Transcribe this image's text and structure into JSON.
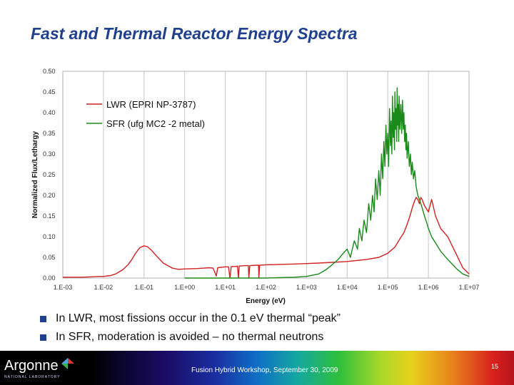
{
  "title": "Fast and Thermal Reactor Energy Spectra",
  "bullets": [
    "In LWR, most fissions occur in the 0.1 eV thermal “peak”",
    "In SFR, moderation is avoided – no thermal neutrons"
  ],
  "footer": {
    "logo_text": "Argonne",
    "logo_sub": "NATIONAL LABORATORY",
    "event_text": "Fusion Hybrid Workshop, September 30, 2009",
    "page_number": "15"
  },
  "chart_data": {
    "type": "line",
    "xlabel": "Energy (eV)",
    "ylabel": "Normalized Flux/Lethargy",
    "xscale": "log",
    "xlim": [
      0.001,
      10000000
    ],
    "ylim": [
      0,
      0.5
    ],
    "x_tick_labels": [
      "1.E-03",
      "1.E-02",
      "1.E-01",
      "1.E+00",
      "1.E+01",
      "1.E+02",
      "1.E+03",
      "1.E+04",
      "1.E+05",
      "1.E+06",
      "1.E+07"
    ],
    "y_tick_labels": [
      "0.00",
      "0.05",
      "0.10",
      "0.15",
      "0.20",
      "0.25",
      "0.30",
      "0.35",
      "0.40",
      "0.45",
      "0.50"
    ],
    "grid": "vertical",
    "legend": "top-left",
    "series": [
      {
        "name": "LWR (EPRI NP-3787)",
        "color": "#d42020",
        "points": [
          [
            0.001,
            0.002
          ],
          [
            0.003,
            0.002
          ],
          [
            0.005,
            0.003
          ],
          [
            0.008,
            0.004
          ],
          [
            0.01,
            0.004
          ],
          [
            0.015,
            0.006
          ],
          [
            0.02,
            0.01
          ],
          [
            0.03,
            0.02
          ],
          [
            0.04,
            0.032
          ],
          [
            0.05,
            0.045
          ],
          [
            0.06,
            0.058
          ],
          [
            0.07,
            0.067
          ],
          [
            0.08,
            0.074
          ],
          [
            0.1,
            0.078
          ],
          [
            0.12,
            0.076
          ],
          [
            0.15,
            0.068
          ],
          [
            0.2,
            0.054
          ],
          [
            0.3,
            0.036
          ],
          [
            0.5,
            0.024
          ],
          [
            0.7,
            0.021
          ],
          [
            1,
            0.022
          ],
          [
            2,
            0.023
          ],
          [
            3,
            0.024
          ],
          [
            4,
            0.025
          ],
          [
            5,
            0.024
          ],
          [
            6,
            0.005
          ],
          [
            6.5,
            0.025
          ],
          [
            8,
            0.026
          ],
          [
            10,
            0.027
          ],
          [
            12,
            0.027
          ],
          [
            13,
            0.0
          ],
          [
            14,
            0.028
          ],
          [
            18,
            0.028
          ],
          [
            20,
            0.029
          ],
          [
            21,
            0.0
          ],
          [
            22,
            0.029
          ],
          [
            30,
            0.03
          ],
          [
            37,
            0.03
          ],
          [
            38,
            0.0
          ],
          [
            40,
            0.03
          ],
          [
            60,
            0.031
          ],
          [
            66,
            0.031
          ],
          [
            67,
            0.0
          ],
          [
            70,
            0.031
          ],
          [
            100,
            0.032
          ],
          [
            200,
            0.033
          ],
          [
            500,
            0.034
          ],
          [
            1000,
            0.035
          ],
          [
            3000,
            0.037
          ],
          [
            10000,
            0.04
          ],
          [
            30000,
            0.045
          ],
          [
            60000,
            0.05
          ],
          [
            100000,
            0.06
          ],
          [
            150000,
            0.075
          ],
          [
            200000,
            0.095
          ],
          [
            250000,
            0.11
          ],
          [
            300000,
            0.13
          ],
          [
            350000,
            0.15
          ],
          [
            400000,
            0.17
          ],
          [
            450000,
            0.185
          ],
          [
            500000,
            0.195
          ],
          [
            550000,
            0.19
          ],
          [
            600000,
            0.18
          ],
          [
            650000,
            0.195
          ],
          [
            700000,
            0.19
          ],
          [
            800000,
            0.175
          ],
          [
            1000000,
            0.16
          ],
          [
            1200000,
            0.19
          ],
          [
            1500000,
            0.15
          ],
          [
            2000000,
            0.12
          ],
          [
            3000000,
            0.1
          ],
          [
            5000000,
            0.055
          ],
          [
            7000000,
            0.025
          ],
          [
            10000000,
            0.01
          ]
        ]
      },
      {
        "name": "SFR (ufg MC2 -2 metal)",
        "color": "#1a8a1a",
        "points": [
          [
            1,
            0.0
          ],
          [
            10,
            0.0
          ],
          [
            100,
            0.0
          ],
          [
            500,
            0.002
          ],
          [
            1000,
            0.004
          ],
          [
            2000,
            0.01
          ],
          [
            3000,
            0.02
          ],
          [
            4000,
            0.03
          ],
          [
            6000,
            0.045
          ],
          [
            8000,
            0.06
          ],
          [
            10000,
            0.07
          ],
          [
            12000,
            0.05
          ],
          [
            15000,
            0.09
          ],
          [
            18000,
            0.07
          ],
          [
            20000,
            0.12
          ],
          [
            23000,
            0.09
          ],
          [
            26000,
            0.14
          ],
          [
            30000,
            0.11
          ],
          [
            34000,
            0.18
          ],
          [
            38000,
            0.14
          ],
          [
            42000,
            0.2
          ],
          [
            46000,
            0.16
          ],
          [
            50000,
            0.24
          ],
          [
            55000,
            0.19
          ],
          [
            60000,
            0.26
          ],
          [
            65000,
            0.2
          ],
          [
            70000,
            0.3
          ],
          [
            75000,
            0.24
          ],
          [
            80000,
            0.33
          ],
          [
            85000,
            0.27
          ],
          [
            90000,
            0.37
          ],
          [
            95000,
            0.3
          ],
          [
            100000,
            0.35
          ],
          [
            105000,
            0.27
          ],
          [
            110000,
            0.41
          ],
          [
            116000,
            0.32
          ],
          [
            120000,
            0.38
          ],
          [
            126000,
            0.3
          ],
          [
            130000,
            0.44
          ],
          [
            136000,
            0.34
          ],
          [
            140000,
            0.4
          ],
          [
            146000,
            0.31
          ],
          [
            150000,
            0.45
          ],
          [
            156000,
            0.36
          ],
          [
            160000,
            0.41
          ],
          [
            166000,
            0.33
          ],
          [
            170000,
            0.46
          ],
          [
            176000,
            0.37
          ],
          [
            180000,
            0.42
          ],
          [
            186000,
            0.33
          ],
          [
            190000,
            0.44
          ],
          [
            200000,
            0.36
          ],
          [
            210000,
            0.42
          ],
          [
            220000,
            0.35
          ],
          [
            230000,
            0.43
          ],
          [
            240000,
            0.36
          ],
          [
            250000,
            0.4
          ],
          [
            260000,
            0.33
          ],
          [
            270000,
            0.37
          ],
          [
            280000,
            0.31
          ],
          [
            290000,
            0.35
          ],
          [
            300000,
            0.29
          ],
          [
            320000,
            0.33
          ],
          [
            340000,
            0.27
          ],
          [
            360000,
            0.3
          ],
          [
            380000,
            0.25
          ],
          [
            400000,
            0.28
          ],
          [
            430000,
            0.24
          ],
          [
            460000,
            0.26
          ],
          [
            500000,
            0.22
          ],
          [
            550000,
            0.2
          ],
          [
            600000,
            0.19
          ],
          [
            700000,
            0.17
          ],
          [
            800000,
            0.15
          ],
          [
            900000,
            0.135
          ],
          [
            1000000,
            0.12
          ],
          [
            1200000,
            0.1
          ],
          [
            1500000,
            0.085
          ],
          [
            2000000,
            0.065
          ],
          [
            3000000,
            0.045
          ],
          [
            5000000,
            0.022
          ],
          [
            7000000,
            0.01
          ],
          [
            10000000,
            0.004
          ]
        ]
      }
    ]
  }
}
